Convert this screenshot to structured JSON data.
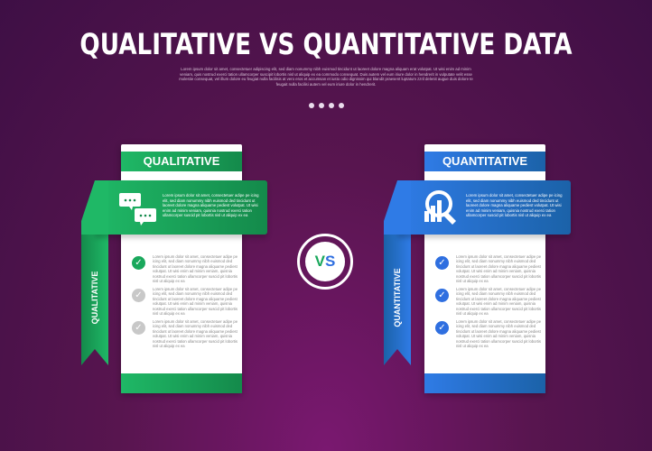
{
  "title": "QUALITATIVE VS QUANTITATIVE DATA",
  "intro": "Lorem ipsum dolor sit amet, consectetuer adipiscing elit, sed diam nonummy nibh euismod tincidunt ut laoreet dolore magna aliquam erat volutpat. Ut wisi enim ad minim veniam, quis nostrud exerci tation ullamcorper suscipit lobortis nisl ut aliquip ex ea commodo consequat. Duis autem vel eum iriure dolor in hendrerit in vulputate velit esse molestie consequat, vel illum dolore eu feugiat nulla facilisis at vero eros et accumsan et iusto odio dignissim qui blandit praesent luptatum zzril delenit augue duis dolore te feugait nulla facilisi autem vel eum iriure dolor in hendrerit.",
  "vs": "VS",
  "colors": {
    "green": "#1aa85c",
    "blue": "#2f6fe0",
    "vs_green": "#1aa85c",
    "vs_blue": "#2f6fe0"
  },
  "left": {
    "header": "QUALITATIVE",
    "side_label": "QUALITATIVE",
    "icon": "chat-bubbles-icon",
    "ribbon_text": "Lorem ipsum dolor sit amet, consectetuer adipe pe icing elit, sed diam nonummy nibh euismod ded tincidunt ut laoreet dolore magna aliquame pediest volutpat. Ut wisi enim ad minim veniam, quisnia nostrud exerci tation ullamcorper suscid pit lobortis nisl ut aliquip ex ea",
    "items": [
      {
        "checked": true,
        "text": "Lorem ipsum dolor sit amet, consectetuer adipe pe icing elit, sed diam nonummy nibh euismod ded tincidunt ut laoreet dolore magna aliquame pediest volutpat. Ut wisi enim ad minim veniam, quisnia nostrud exerci tation ullamcorper suscid pit lobortis nisl ut aliquip ex ea"
      },
      {
        "checked": false,
        "text": "Lorem ipsum dolor sit amet, consectetuer adipe pe icing elit, sed diam nonummy nibh euismod ded tincidunt ut laoreet dolore magna aliquame pediest volutpat. Ut wisi enim ad minim veniam, quisnia nostrud exerci tation ullamcorper suscid pit lobortis nisl ut aliquip ex ea"
      },
      {
        "checked": false,
        "text": "Lorem ipsum dolor sit amet, consectetuer adipe pe icing elit, sed diam nonummy nibh euismod ded tincidunt ut laoreet dolore magna aliquame pediest volutpat. Ut wisi enim ad minim veniam, quisnia nostrud exerci tation ullamcorper suscid pit lobortis nisl ut aliquip ex ea"
      }
    ]
  },
  "right": {
    "header": "QUANTITATIVE",
    "side_label": "QUANTITATIVE",
    "icon": "chart-magnifier-icon",
    "ribbon_text": "Lorem ipsum dolor sit amet, consectetuer adipe pe icing elit, sed diam nonummy nibh euismod ded tincidunt ut laoreet dolore magna aliquame pediest volutpat. Ut wisi enim ad minim veniam, quisnia nostrud exerci tation ullamcorper suscid pit lobortis nisl ut aliquip ex ea",
    "items": [
      {
        "checked": true,
        "text": "Lorem ipsum dolor sit amet, consectetuer adipe pe icing elit, sed diam nonummy nibh euismod ded tincidunt ut laoreet dolore magna aliquame pediest volutpat. Ut wisi enim ad minim veniam, quisnia nostrud exerci tation ullamcorper suscid pit lobortis nisl ut aliquip ex ea"
      },
      {
        "checked": true,
        "text": "Lorem ipsum dolor sit amet, consectetuer adipe pe icing elit, sed diam nonummy nibh euismod ded tincidunt ut laoreet dolore magna aliquame pediest volutpat. Ut wisi enim ad minim veniam, quisnia nostrud exerci tation ullamcorper suscid pit lobortis nisl ut aliquip ex ea"
      },
      {
        "checked": true,
        "text": "Lorem ipsum dolor sit amet, consectetuer adipe pe icing elit, sed diam nonummy nibh euismod ded tincidunt ut laoreet dolore magna aliquame pediest volutpat. Ut wisi enim ad minim veniam, quisnia nostrud exerci tation ullamcorper suscid pit lobortis nisl ut aliquip ex ea"
      }
    ]
  }
}
